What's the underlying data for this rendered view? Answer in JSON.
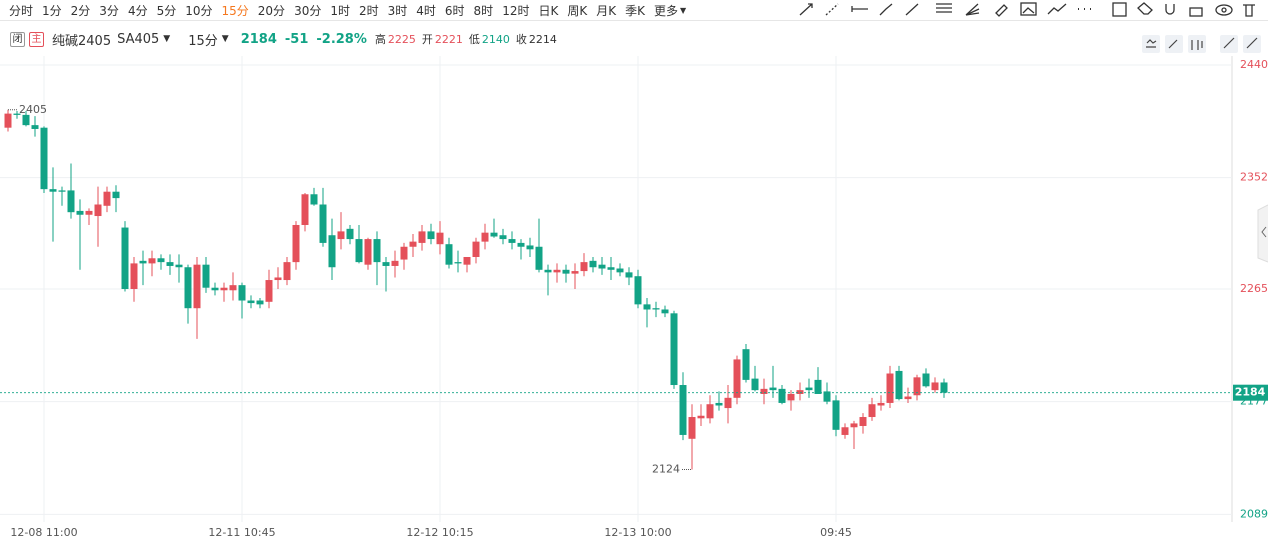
{
  "toolbar": {
    "periods": [
      "分时",
      "1分",
      "2分",
      "3分",
      "4分",
      "5分",
      "10分",
      "15分",
      "20分",
      "30分",
      "1时",
      "2时",
      "3时",
      "4时",
      "6时",
      "8时",
      "12时",
      "日K",
      "周K",
      "月K",
      "季K",
      "更多"
    ],
    "active": 7
  },
  "header": {
    "status": "闭",
    "main": "主",
    "name": "纯碱2405",
    "code": "SA405",
    "period": "15分",
    "price": 2184,
    "change": -51,
    "change_pct": "-2.28%",
    "stats": [
      {
        "label": "高",
        "value": 2225
      },
      {
        "label": "开",
        "value": 2221
      },
      {
        "label": "低",
        "value": 2140
      },
      {
        "label": "收",
        "value": 2214
      }
    ]
  },
  "chart_data": {
    "type": "candlestick",
    "up_color": "#e4505a",
    "down_color": "#12a386",
    "grid": true,
    "categories": [
      null,
      null,
      null,
      null,
      "12-08 11:00",
      null,
      null,
      null,
      null,
      null,
      null,
      null,
      null,
      null,
      null,
      null,
      null,
      null,
      null,
      null,
      null,
      null,
      null,
      null,
      null,
      null,
      "12-11 10:45",
      null,
      null,
      null,
      null,
      null,
      null,
      null,
      null,
      null,
      null,
      null,
      null,
      null,
      null,
      null,
      null,
      null,
      null,
      null,
      null,
      null,
      "12-12 10:15",
      null,
      null,
      null,
      null,
      null,
      null,
      null,
      null,
      null,
      null,
      null,
      null,
      null,
      null,
      null,
      null,
      null,
      null,
      null,
      null,
      null,
      "12-13 10:00",
      null,
      null,
      null,
      null,
      null,
      null,
      null,
      null,
      null,
      null,
      null,
      null,
      null,
      null,
      null,
      null,
      null,
      null,
      null,
      null,
      null,
      "09:45",
      null,
      null,
      null,
      null,
      null,
      null,
      null,
      null,
      null,
      null,
      null,
      null
    ],
    "open": [
      2391,
      2402,
      2401,
      2393,
      2391,
      2343,
      2342,
      2342,
      2326,
      2323,
      2322,
      2330,
      2341,
      2313,
      2265,
      2287,
      2285,
      2289,
      2286,
      2284,
      2282,
      2250,
      2284,
      2266,
      2264,
      2264,
      2268,
      2256,
      2256,
      2255,
      2272,
      2272,
      2286,
      2315,
      2339,
      2331,
      2307,
      2304,
      2312,
      2304,
      2284,
      2304,
      2286,
      2283,
      2288,
      2298,
      2301,
      2310,
      2300,
      2300,
      2286,
      2284,
      2290,
      2302,
      2309,
      2307,
      2304,
      2301,
      2299,
      2298,
      2280,
      2278,
      2280,
      2277,
      2279,
      2287,
      2284,
      2282,
      2281,
      2278,
      2275,
      2253,
      2250,
      2249,
      2246,
      2190,
      2148,
      2164,
      2164,
      2176,
      2172,
      2180,
      2218,
      2195,
      2183,
      2188,
      2187,
      2178,
      2183,
      2188,
      2194,
      2185,
      2178,
      2151,
      2157,
      2158,
      2165,
      2174,
      2176,
      2201,
      2179,
      2182,
      2199,
      2186,
      2192
    ],
    "high": [
      2405,
      2404,
      2404,
      2400,
      2392,
      2360,
      2345,
      2363,
      2335,
      2328,
      2345,
      2345,
      2346,
      2318,
      2290,
      2295,
      2295,
      2292,
      2292,
      2292,
      2284,
      2290,
      2290,
      2270,
      2270,
      2278,
      2270,
      2260,
      2258,
      2280,
      2282,
      2290,
      2318,
      2340,
      2344,
      2344,
      2320,
      2325,
      2315,
      2315,
      2305,
      2310,
      2290,
      2295,
      2301,
      2308,
      2315,
      2316,
      2318,
      2305,
      2295,
      2290,
      2305,
      2316,
      2320,
      2312,
      2310,
      2304,
      2305,
      2320,
      2284,
      2285,
      2284,
      2285,
      2293,
      2290,
      2290,
      2290,
      2285,
      2282,
      2280,
      2258,
      2255,
      2252,
      2248,
      2200,
      2175,
      2175,
      2182,
      2185,
      2190,
      2213,
      2222,
      2205,
      2195,
      2205,
      2190,
      2186,
      2192,
      2195,
      2204,
      2192,
      2182,
      2160,
      2162,
      2168,
      2180,
      2182,
      2205,
      2205,
      2188,
      2198,
      2203,
      2196,
      2195
    ],
    "low": [
      2388,
      2398,
      2392,
      2384,
      2340,
      2302,
      2330,
      2320,
      2280,
      2315,
      2298,
      2325,
      2325,
      2263,
      2255,
      2268,
      2275,
      2280,
      2276,
      2270,
      2238,
      2226,
      2262,
      2260,
      2255,
      2256,
      2242,
      2250,
      2250,
      2250,
      2265,
      2268,
      2280,
      2310,
      2330,
      2298,
      2272,
      2296,
      2300,
      2285,
      2280,
      2268,
      2263,
      2274,
      2280,
      2290,
      2295,
      2300,
      2292,
      2281,
      2278,
      2278,
      2285,
      2296,
      2305,
      2300,
      2296,
      2288,
      2290,
      2278,
      2260,
      2270,
      2270,
      2265,
      2275,
      2278,
      2276,
      2272,
      2275,
      2268,
      2250,
      2235,
      2243,
      2243,
      2187,
      2147,
      2124,
      2158,
      2160,
      2170,
      2160,
      2175,
      2192,
      2185,
      2175,
      2180,
      2175,
      2170,
      2178,
      2180,
      2183,
      2175,
      2150,
      2148,
      2140,
      2152,
      2162,
      2170,
      2172,
      2178,
      2176,
      2178,
      2188,
      2184,
      2180
    ],
    "close": [
      2402,
      2401,
      2393,
      2390,
      2343,
      2341,
      2341,
      2325,
      2323,
      2326,
      2331,
      2341,
      2336,
      2265,
      2285,
      2285,
      2289,
      2286,
      2283,
      2282,
      2250,
      2284,
      2266,
      2264,
      2266,
      2268,
      2256,
      2254,
      2253,
      2272,
      2274,
      2286,
      2315,
      2339,
      2331,
      2301,
      2282,
      2310,
      2304,
      2286,
      2304,
      2286,
      2283,
      2287,
      2298,
      2302,
      2310,
      2304,
      2309,
      2284,
      2285,
      2290,
      2302,
      2309,
      2306,
      2304,
      2301,
      2298,
      2296,
      2280,
      2278,
      2280,
      2277,
      2279,
      2286,
      2282,
      2281,
      2280,
      2278,
      2274,
      2253,
      2249,
      2249,
      2246,
      2190,
      2151,
      2165,
      2166,
      2175,
      2174,
      2180,
      2210,
      2194,
      2186,
      2187,
      2186,
      2176,
      2183,
      2186,
      2186,
      2183,
      2177,
      2155,
      2157,
      2160,
      2165,
      2175,
      2176,
      2199,
      2179,
      2181,
      2196,
      2189,
      2192,
      2184
    ],
    "ylim": [
      2083,
      2447
    ],
    "yticks": [
      2089,
      2177,
      2265,
      2352,
      2440
    ]
  }
}
